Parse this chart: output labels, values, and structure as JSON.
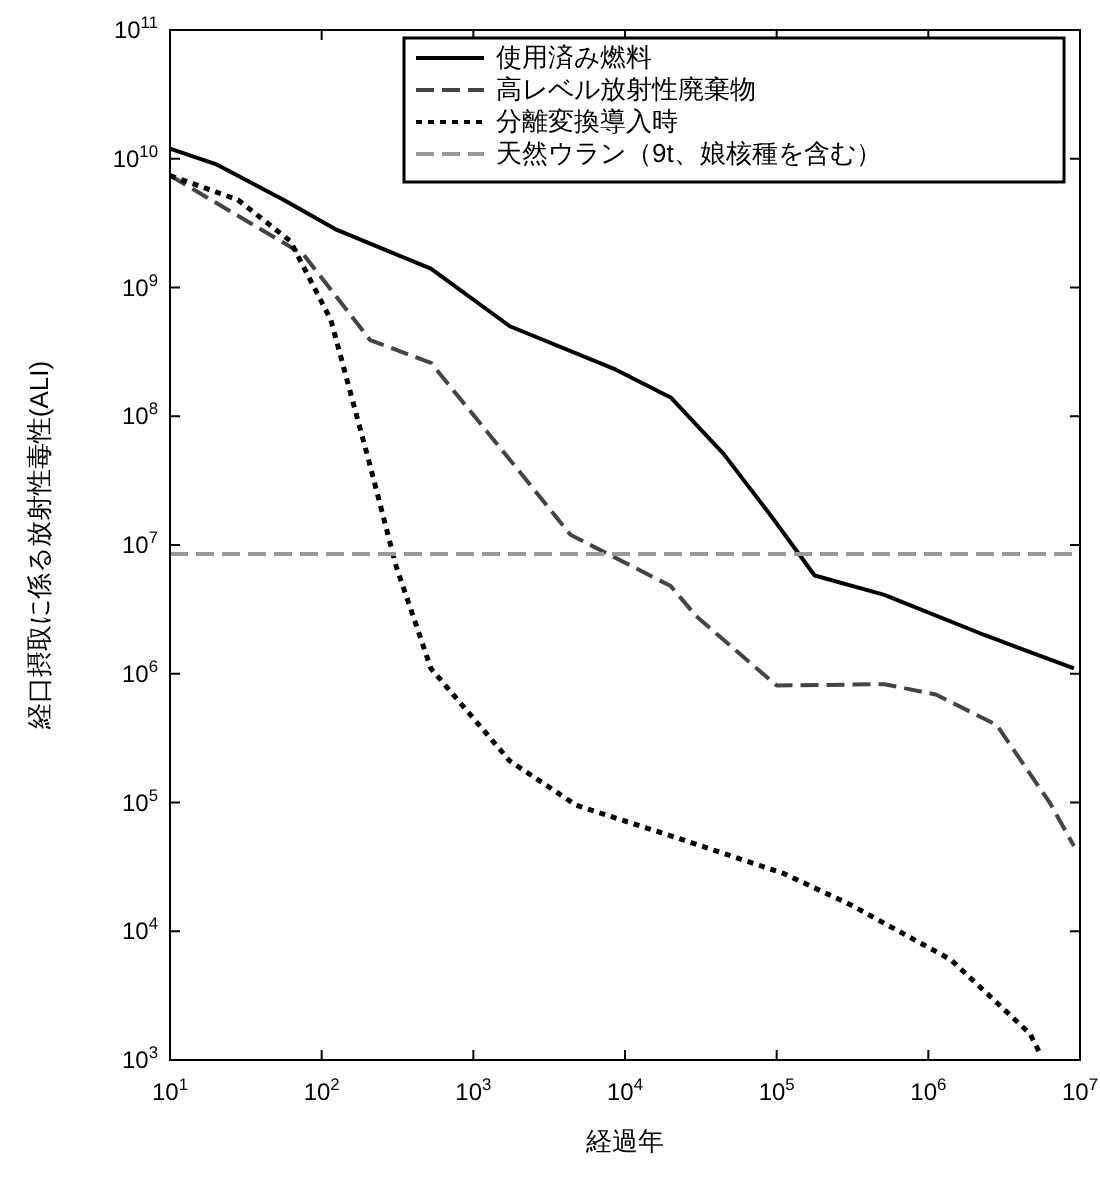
{
  "chart_data": {
    "type": "line",
    "xlabel": "経過年",
    "ylabel": "経口摂取に係る放射性毒性(ALI)",
    "log": "xy",
    "grid": false,
    "legend": "top right",
    "xlim": [
      10,
      10000000
    ],
    "ylim": [
      1000,
      100000000000
    ],
    "xticks": [
      {
        "value": 10,
        "label": "10$^{1}$"
      },
      {
        "value": 100,
        "label": "10$^{2}$"
      },
      {
        "value": 1000,
        "label": "10$^{3}$"
      },
      {
        "value": 10000,
        "label": "10$^{4}$"
      },
      {
        "value": 100000,
        "label": "10$^{5}$"
      },
      {
        "value": 1000000,
        "label": "10$^{6}$"
      },
      {
        "value": 10000000,
        "label": "10$^{7}$"
      }
    ],
    "yticks": [
      {
        "value": 1000,
        "label": "10$^{3}$"
      },
      {
        "value": 10000,
        "label": "10$^{4}$"
      },
      {
        "value": 100000,
        "label": "10$^{5}$"
      },
      {
        "value": 1000000,
        "label": "10$^{6}$"
      },
      {
        "value": 10000000,
        "label": "10$^{7}$"
      },
      {
        "value": 100000000,
        "label": "10$^{8}$"
      },
      {
        "value": 1000000000,
        "label": "10$^{9}$"
      },
      {
        "value": 10000000000,
        "label": "10$^{10}$"
      },
      {
        "value": 100000000000,
        "label": "10$^{11}$"
      }
    ],
    "series": [
      {
        "name": "使用済み燃料",
        "color": "#000000",
        "line_style": "solid",
        "x": [
          10,
          20,
          56,
          126,
          525,
          1740,
          8710,
          20000,
          44700,
          91200,
          178000,
          513000,
          2340000,
          9120000
        ],
        "values": [
          12000000000,
          9100000000,
          4800000000,
          2800000000,
          1400000000,
          500000000,
          230000000,
          140000000,
          51000000,
          17000000,
          5800000,
          4100000,
          2000000,
          1100000
        ]
      },
      {
        "name": "高レベル放射性廃棄物",
        "color": "#444444",
        "line_style": "dashed",
        "x": [
          10,
          76,
          209,
          525,
          1740,
          4370,
          20000,
          29500,
          100000,
          513000,
          1120000,
          2820000,
          6310000,
          9120000
        ],
        "values": [
          7400000000,
          1800000000,
          390000000,
          260000000,
          46000000,
          12000000,
          4800000,
          2800000,
          810000,
          830000,
          690000,
          400000,
          100000,
          46000
        ]
      },
      {
        "name": "分離変換導入時",
        "color": "#000000",
        "line_style": "dotted",
        "x": [
          10,
          28,
          62,
          115,
          209,
          309,
          525,
          1740,
          4790,
          24500,
          112000,
          309000,
          1410000,
          4680000,
          5500000
        ],
        "values": [
          7400000000,
          4800000000,
          2300000000,
          560000000,
          41000000,
          6900000,
          1100000,
          210000,
          95000,
          51000,
          28000,
          16000,
          6000,
          1600,
          1100
        ]
      },
      {
        "name": "天然ウラン（9t、娘核種を含む）",
        "color": "#999999",
        "line_style": "dashed",
        "x": [
          10,
          10000000
        ],
        "values": [
          8500000,
          8500000
        ]
      }
    ]
  }
}
